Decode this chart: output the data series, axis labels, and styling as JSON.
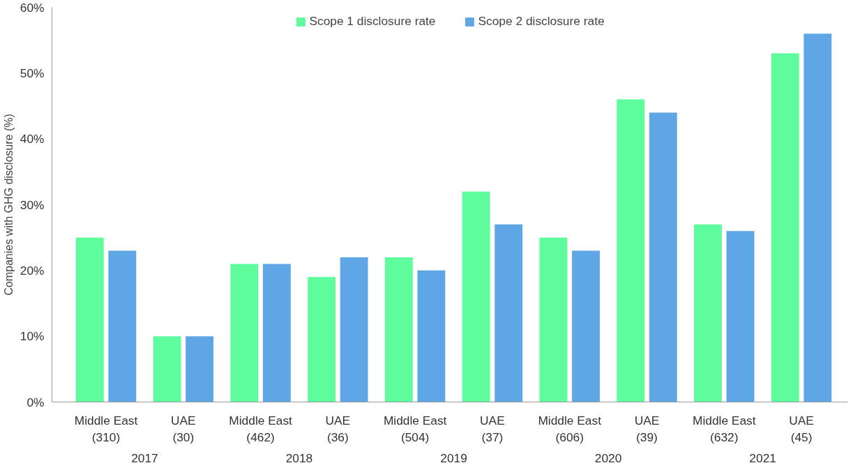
{
  "chart_data": {
    "type": "bar",
    "ylabel": "Companies with GHG disclosure (%)",
    "categories": [
      "Middle East\n(310)",
      "UAE\n(30)",
      "Middle East\n(462)",
      "UAE\n(36)",
      "Middle East\n(504)",
      "UAE\n(37)",
      "Middle East\n(606)",
      "UAE\n(39)",
      "Middle East\n(632)",
      "UAE\n(45)"
    ],
    "annotations": [
      "2017",
      "2018",
      "2019",
      "2020",
      "2021"
    ],
    "series": [
      {
        "name": "Scope 1 disclosure rate",
        "color": "#5efc9d",
        "values": [
          25,
          10,
          21,
          19,
          22,
          32,
          25,
          46,
          27,
          53
        ]
      },
      {
        "name": "Scope 2 disclosure rate",
        "color": "#5fa6e6",
        "values": [
          23,
          10,
          21,
          22,
          20,
          27,
          23,
          44,
          26,
          56
        ]
      }
    ],
    "ylim": [
      0,
      60
    ],
    "yticks": [
      {
        "value": 0,
        "label": "0%"
      },
      {
        "value": 10,
        "label": "10%"
      },
      {
        "value": 20,
        "label": "20%"
      },
      {
        "value": 30,
        "label": "30%"
      },
      {
        "value": 40,
        "label": "40%"
      },
      {
        "value": 50,
        "label": "50%"
      },
      {
        "value": 60,
        "label": "60%"
      }
    ],
    "legend": "top"
  }
}
